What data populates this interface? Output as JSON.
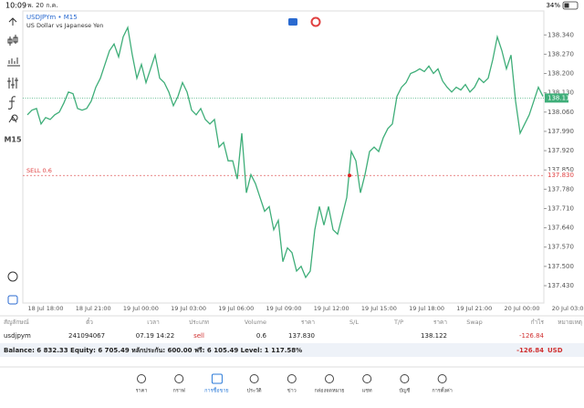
{
  "status_bar": {
    "time": "10:09",
    "date": "พ. 20 ก.ค.",
    "battery": "34%"
  },
  "chart": {
    "type": "line",
    "title": "USDJPYm • M15",
    "subtitle": "US Dollar vs Japanese Yen",
    "timeframe_label": "M15",
    "color": "#3fae79",
    "values": [
      138.05,
      138.067,
      138.073,
      138.017,
      138.04,
      138.033,
      138.05,
      138.06,
      138.093,
      138.133,
      138.127,
      138.073,
      138.067,
      138.073,
      138.1,
      138.15,
      138.183,
      138.233,
      138.283,
      138.307,
      138.26,
      138.333,
      138.367,
      138.267,
      138.183,
      138.233,
      138.167,
      138.217,
      138.267,
      138.183,
      138.167,
      138.133,
      138.083,
      138.117,
      138.167,
      138.133,
      138.067,
      138.05,
      138.073,
      138.033,
      138.017,
      138.033,
      137.933,
      137.95,
      137.883,
      137.883,
      137.817,
      137.983,
      137.767,
      137.833,
      137.8,
      137.75,
      137.7,
      137.717,
      137.633,
      137.667,
      137.517,
      137.567,
      137.55,
      137.483,
      137.5,
      137.46,
      137.483,
      137.633,
      137.717,
      137.65,
      137.717,
      137.633,
      137.617,
      137.683,
      137.75,
      137.917,
      137.883,
      137.767,
      137.833,
      137.917,
      137.933,
      137.917,
      137.967,
      138.0,
      138.017,
      138.117,
      138.15,
      138.167,
      138.2,
      138.207,
      138.217,
      138.207,
      138.227,
      138.2,
      138.217,
      138.173,
      138.15,
      138.133,
      138.15,
      138.14,
      138.16,
      138.133,
      138.15,
      138.183,
      138.167,
      138.183,
      138.25,
      138.333,
      138.283,
      138.217,
      138.267,
      138.1,
      137.983,
      138.017,
      138.05,
      138.1,
      138.15,
      138.117
    ],
    "ylim": [
      137.367,
      138.427
    ],
    "yticks": [
      {
        "value": 138.34,
        "label": "138.340"
      },
      {
        "value": 138.27,
        "label": "138.270"
      },
      {
        "value": 138.2,
        "label": "138.200"
      },
      {
        "value": 138.13,
        "label": "138.130"
      },
      {
        "value": 138.06,
        "label": "138.060"
      },
      {
        "value": 137.99,
        "label": "137.990"
      },
      {
        "value": 137.92,
        "label": "137.920"
      },
      {
        "value": 137.85,
        "label": "137.850"
      },
      {
        "value": 137.78,
        "label": "137.780"
      },
      {
        "value": 137.71,
        "label": "137.710"
      },
      {
        "value": 137.64,
        "label": "137.640"
      },
      {
        "value": 137.57,
        "label": "137.570"
      },
      {
        "value": 137.5,
        "label": "137.500"
      },
      {
        "value": 137.43,
        "label": "137.430"
      }
    ],
    "x_labels": [
      "18 Jul 18:00",
      "18 Jul 21:00",
      "19 Jul 00:00",
      "19 Jul 03:00",
      "19 Jul 06:00",
      "19 Jul 09:00",
      "19 Jul 12:00",
      "19 Jul 15:00",
      "19 Jul 18:00",
      "19 Jul 21:00",
      "20 Jul 00:00",
      "20 Jul 03:00"
    ],
    "current_price": {
      "value": 138.111,
      "label": "138.111"
    },
    "order_line": {
      "name": "SELL 0.6",
      "value": 137.83,
      "label": "137.830"
    }
  },
  "table": {
    "headers": [
      "สัญลักษณ์",
      "ตั๋ว",
      "เวลา",
      "ประเภท",
      "Volume",
      "ราคา",
      "S/L",
      "T/P",
      "ราคา",
      "Swap",
      "กำไร",
      "หมายเหตุ"
    ],
    "rows": [
      [
        "usdjpym",
        "241094067",
        "07.19 14:22",
        "sell",
        "0.6",
        "137.830",
        "",
        "",
        "138.122",
        "",
        "-126.84",
        ""
      ]
    ]
  },
  "balance": {
    "text": "Balance: 6 832.33 Equity: 6 705.49 หลักประกัน: 600.00 ฟรี: 6 105.49 Level: 1 117.58%",
    "profit": "-126.84",
    "currency": "USD"
  },
  "tabs": [
    "ราคา",
    "กราฟ",
    "การซื้อขาย",
    "ประวัติ",
    "ข่าว",
    "กล่องจดหมาย",
    "แชท",
    "บัญชี",
    "การตั้งค่า"
  ]
}
